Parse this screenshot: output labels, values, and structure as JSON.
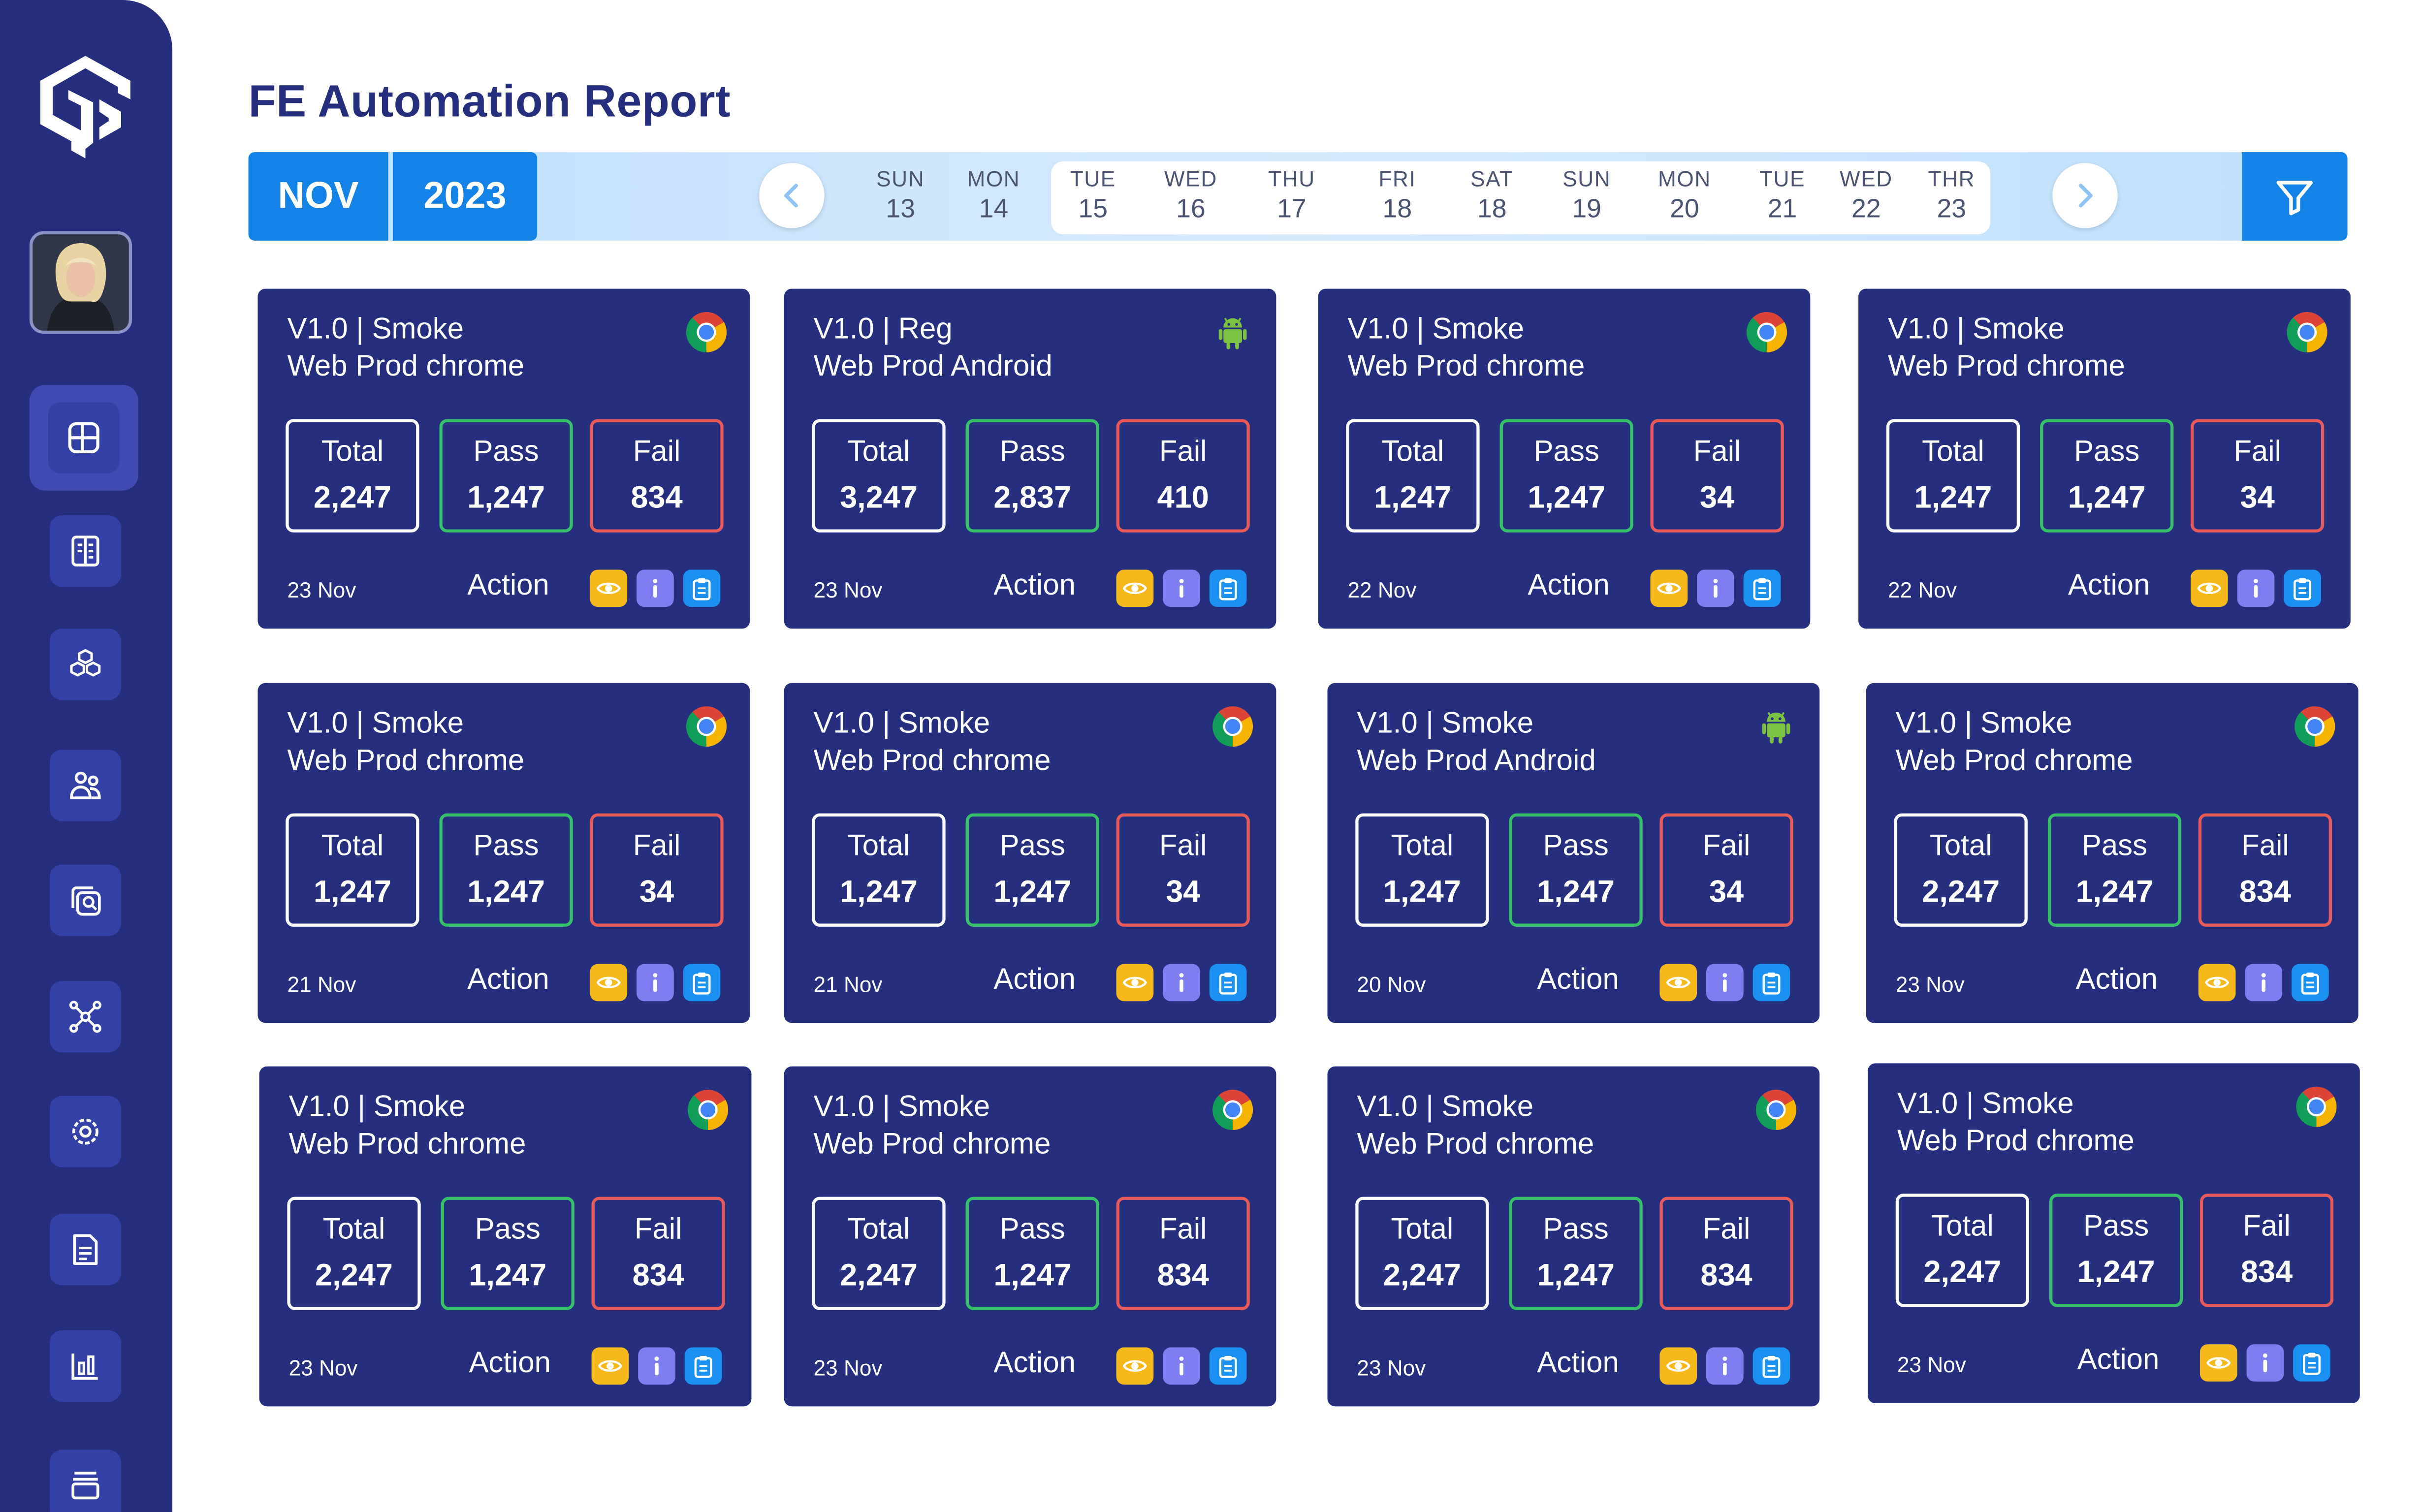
{
  "app": {
    "title": "FE Automation Report"
  },
  "datebar": {
    "month": "NOV",
    "year": "2023",
    "days": [
      {
        "name": "SUN",
        "date": "13"
      },
      {
        "name": "MON",
        "date": "14"
      },
      {
        "name": "TUE",
        "date": "15"
      },
      {
        "name": "WED",
        "date": "16"
      },
      {
        "name": "THU",
        "date": "17"
      },
      {
        "name": "FRI",
        "date": "18"
      },
      {
        "name": "SAT",
        "date": "18"
      },
      {
        "name": "SUN",
        "date": "19"
      },
      {
        "name": "MON",
        "date": "20"
      },
      {
        "name": "TUE",
        "date": "21"
      },
      {
        "name": "WED",
        "date": "22"
      },
      {
        "name": "THR",
        "date": "23"
      }
    ],
    "prev_icon": "chevron-left-icon",
    "next_icon": "chevron-right-icon",
    "filter_icon": "filter-icon"
  },
  "sidebar": {
    "logo": "logo-icon",
    "items": [
      {
        "icon": "dashboard-icon",
        "active": true
      },
      {
        "icon": "document-list-icon"
      },
      {
        "icon": "cubes-icon"
      },
      {
        "icon": "users-icon"
      },
      {
        "icon": "image-search-icon"
      },
      {
        "icon": "network-icon"
      },
      {
        "icon": "settings-icon"
      },
      {
        "icon": "file-text-icon"
      },
      {
        "icon": "bar-chart-icon"
      },
      {
        "icon": "archive-icon"
      }
    ]
  },
  "labels": {
    "total": "Total",
    "pass": "Pass",
    "fail": "Fail",
    "action": "Action"
  },
  "colors": {
    "navy": "#262F7E",
    "blue": "#1382e6",
    "pass": "#37c06a",
    "fail": "#e85a5a",
    "eye": "#f6b91b",
    "info": "#7e7ef0",
    "clip": "#1a90f0"
  },
  "cards": [
    {
      "title1": "V1.0 | Smoke",
      "title2": "Web Prod chrome",
      "platform": "chrome",
      "total": "2,247",
      "pass": "1,247",
      "fail": "834",
      "date": "23 Nov"
    },
    {
      "title1": "V1.0 | Reg",
      "title2": "Web Prod Android",
      "platform": "android",
      "total": "3,247",
      "pass": "2,837",
      "fail": "410",
      "date": "23 Nov"
    },
    {
      "title1": "V1.0 | Smoke",
      "title2": "Web Prod chrome",
      "platform": "chrome",
      "total": "1,247",
      "pass": "1,247",
      "fail": "34",
      "date": "22 Nov"
    },
    {
      "title1": "V1.0 | Smoke",
      "title2": "Web Prod chrome",
      "platform": "chrome",
      "total": "1,247",
      "pass": "1,247",
      "fail": "34",
      "date": "22 Nov"
    },
    {
      "title1": "V1.0 | Smoke",
      "title2": "Web Prod chrome",
      "platform": "chrome",
      "total": "1,247",
      "pass": "1,247",
      "fail": "34",
      "date": "21 Nov"
    },
    {
      "title1": "V1.0 | Smoke",
      "title2": "Web Prod chrome",
      "platform": "chrome",
      "total": "1,247",
      "pass": "1,247",
      "fail": "34",
      "date": "21 Nov"
    },
    {
      "title1": "V1.0 | Smoke",
      "title2": "Web Prod Android",
      "platform": "android",
      "total": "1,247",
      "pass": "1,247",
      "fail": "34",
      "date": "20 Nov"
    },
    {
      "title1": "V1.0 | Smoke",
      "title2": "Web Prod chrome",
      "platform": "chrome",
      "total": "2,247",
      "pass": "1,247",
      "fail": "834",
      "date": "23 Nov"
    },
    {
      "title1": "V1.0 | Smoke",
      "title2": "Web Prod chrome",
      "platform": "chrome",
      "total": "2,247",
      "pass": "1,247",
      "fail": "834",
      "date": "23 Nov"
    },
    {
      "title1": "V1.0 | Smoke",
      "title2": "Web Prod chrome",
      "platform": "chrome",
      "total": "2,247",
      "pass": "1,247",
      "fail": "834",
      "date": "23 Nov"
    },
    {
      "title1": "V1.0 | Smoke",
      "title2": "Web Prod chrome",
      "platform": "chrome",
      "total": "2,247",
      "pass": "1,247",
      "fail": "834",
      "date": "23 Nov"
    },
    {
      "title1": "V1.0 | Smoke",
      "title2": "Web Prod chrome",
      "platform": "chrome",
      "total": "2,247",
      "pass": "1,247",
      "fail": "834",
      "date": "23 Nov"
    }
  ]
}
